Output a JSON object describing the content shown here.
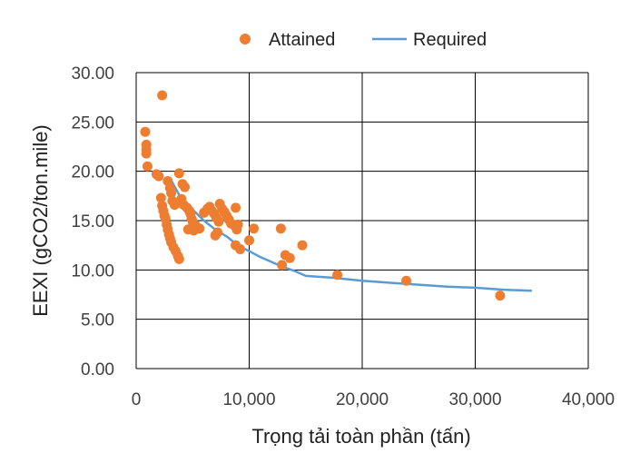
{
  "chart_data": {
    "type": "scatter",
    "xlabel": "Trọng tải toàn phần (tấn)",
    "ylabel": "EEXI (gCO2/ton.mile)",
    "xlim": [
      0,
      40000
    ],
    "ylim": [
      0,
      30
    ],
    "x_ticks": [
      0,
      10000,
      20000,
      30000,
      40000
    ],
    "x_tick_labels": [
      "0",
      "10,000",
      "20,000",
      "30,000",
      "40,000"
    ],
    "y_ticks": [
      0,
      5,
      10,
      15,
      20,
      25,
      30
    ],
    "y_tick_labels": [
      "0.00",
      "5.00",
      "10.00",
      "15.00",
      "20.00",
      "25.00",
      "30.00"
    ],
    "grid": true,
    "legend_position": "top",
    "colors": {
      "attained": "#ED7D31",
      "required": "#5B9BD5"
    },
    "series": [
      {
        "name": "Attained",
        "kind": "scatter",
        "points": [
          [
            2300,
            27.7
          ],
          [
            800,
            24.0
          ],
          [
            900,
            22.7
          ],
          [
            900,
            22.2
          ],
          [
            900,
            21.8
          ],
          [
            1000,
            20.5
          ],
          [
            1800,
            19.7
          ],
          [
            2000,
            19.5
          ],
          [
            2200,
            17.3
          ],
          [
            2300,
            16.5
          ],
          [
            2400,
            16.0
          ],
          [
            2500,
            15.5
          ],
          [
            2600,
            15.2
          ],
          [
            2700,
            14.6
          ],
          [
            2800,
            14.1
          ],
          [
            2900,
            13.6
          ],
          [
            3000,
            13.2
          ],
          [
            3100,
            12.8
          ],
          [
            3300,
            12.3
          ],
          [
            3500,
            11.9
          ],
          [
            3700,
            11.4
          ],
          [
            3800,
            11.1
          ],
          [
            2800,
            19.0
          ],
          [
            3000,
            18.3
          ],
          [
            3100,
            17.8
          ],
          [
            3200,
            17.0
          ],
          [
            3400,
            16.6
          ],
          [
            3600,
            16.8
          ],
          [
            3800,
            19.8
          ],
          [
            4100,
            18.7
          ],
          [
            4300,
            18.4
          ],
          [
            4000,
            17.2
          ],
          [
            4200,
            16.6
          ],
          [
            4500,
            16.3
          ],
          [
            4700,
            16.0
          ],
          [
            4800,
            15.7
          ],
          [
            4900,
            15.2
          ],
          [
            5000,
            14.9
          ],
          [
            5200,
            14.6
          ],
          [
            5300,
            14.4
          ],
          [
            4600,
            14.1
          ],
          [
            5100,
            14.0
          ],
          [
            5600,
            14.2
          ],
          [
            6000,
            15.8
          ],
          [
            6300,
            16.2
          ],
          [
            6500,
            16.4
          ],
          [
            6700,
            16.0
          ],
          [
            6900,
            15.7
          ],
          [
            7100,
            15.3
          ],
          [
            7300,
            14.9
          ],
          [
            7000,
            13.5
          ],
          [
            7200,
            13.8
          ],
          [
            7400,
            16.7
          ],
          [
            7600,
            16.2
          ],
          [
            7800,
            15.9
          ],
          [
            8000,
            15.5
          ],
          [
            8200,
            15.1
          ],
          [
            8400,
            14.7
          ],
          [
            8700,
            14.5
          ],
          [
            8900,
            14.1
          ],
          [
            8800,
            16.3
          ],
          [
            9000,
            14.6
          ],
          [
            8800,
            12.5
          ],
          [
            9200,
            12.1
          ],
          [
            10000,
            13.0
          ],
          [
            10400,
            14.2
          ],
          [
            12800,
            14.2
          ],
          [
            12900,
            10.5
          ],
          [
            13200,
            11.5
          ],
          [
            13600,
            11.2
          ],
          [
            14700,
            12.5
          ],
          [
            17800,
            9.5
          ],
          [
            23900,
            8.9
          ],
          [
            32200,
            7.4
          ]
        ]
      },
      {
        "name": "Required",
        "kind": "line",
        "points": [
          [
            3000,
            19.3
          ],
          [
            4000,
            17.2
          ],
          [
            5000,
            16.1
          ],
          [
            6000,
            15.0
          ],
          [
            7000,
            14.1
          ],
          [
            8000,
            13.4
          ],
          [
            9000,
            12.5
          ],
          [
            10000,
            11.9
          ],
          [
            11000,
            11.3
          ],
          [
            12000,
            10.8
          ],
          [
            13000,
            10.3
          ],
          [
            14000,
            9.9
          ],
          [
            15000,
            9.4
          ],
          [
            17500,
            9.2
          ],
          [
            20000,
            8.9
          ],
          [
            22500,
            8.7
          ],
          [
            25000,
            8.5
          ],
          [
            27500,
            8.3
          ],
          [
            30000,
            8.2
          ],
          [
            32500,
            8.0
          ],
          [
            35000,
            7.9
          ]
        ]
      }
    ]
  }
}
